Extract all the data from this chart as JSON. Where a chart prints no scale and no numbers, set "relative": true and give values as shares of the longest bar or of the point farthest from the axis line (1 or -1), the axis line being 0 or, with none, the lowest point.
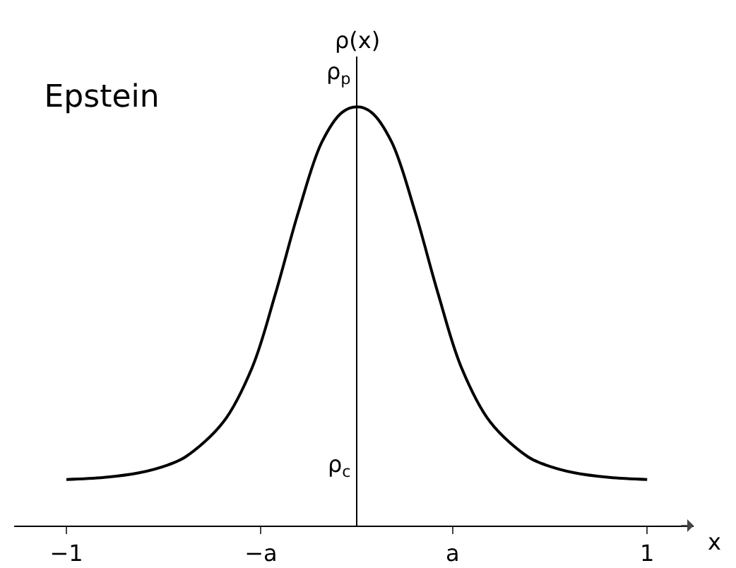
{
  "chart_data": {
    "type": "line",
    "title": "Epstein",
    "xlabel": "x",
    "ylabel": "ρ(x)",
    "relative": true,
    "x": [
      -1,
      -0.87,
      -0.75,
      -0.65,
      -0.59,
      -0.46,
      -0.36,
      -0.28,
      -0.2,
      -0.12,
      -0.05,
      0,
      0.05,
      0.12,
      0.2,
      0.28,
      0.36,
      0.46,
      0.59,
      0.65,
      0.75,
      0.87,
      1
    ],
    "series": [
      {
        "color": "#000000",
        "values": [
          0.11,
          0.115,
          0.126,
          0.145,
          0.164,
          0.247,
          0.378,
          0.554,
          0.751,
          0.916,
          0.987,
          1,
          0.987,
          0.916,
          0.751,
          0.554,
          0.378,
          0.247,
          0.164,
          0.145,
          0.126,
          0.115,
          0.11
        ]
      }
    ],
    "xlim": [
      -1.18,
      1.16
    ],
    "xticks": [
      {
        "value": -1,
        "label": "−1"
      },
      {
        "value": -0.33,
        "label": "−a"
      },
      {
        "value": 0.33,
        "label": "a"
      },
      {
        "value": 1,
        "label": "1"
      }
    ],
    "annotations": [
      "ρ$_{p}$",
      "ρ$_{c}$"
    ],
    "line_style": "solid"
  }
}
